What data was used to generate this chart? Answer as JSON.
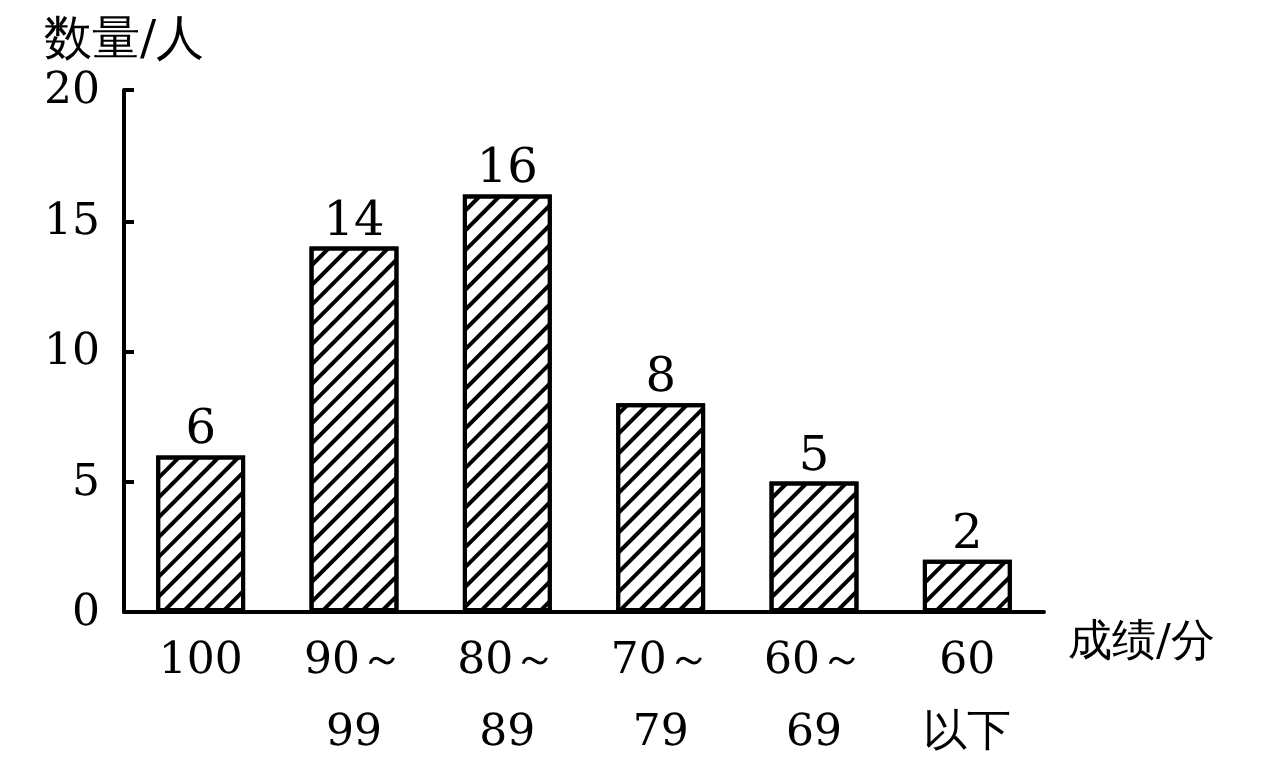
{
  "chart_data": {
    "type": "bar",
    "xlabel": "成绩/分",
    "ylabel": "数量/人",
    "categories": [
      "100",
      "90～\n99",
      "80～\n89",
      "70～\n79",
      "60～\n69",
      "60\n以下"
    ],
    "values": [
      6,
      14,
      16,
      8,
      5,
      2
    ],
    "color": "#ffffff",
    "ylim": [
      0,
      20
    ],
    "yticks": [
      0,
      5,
      10,
      15,
      20
    ],
    "grid": false,
    "data_labels": true
  }
}
